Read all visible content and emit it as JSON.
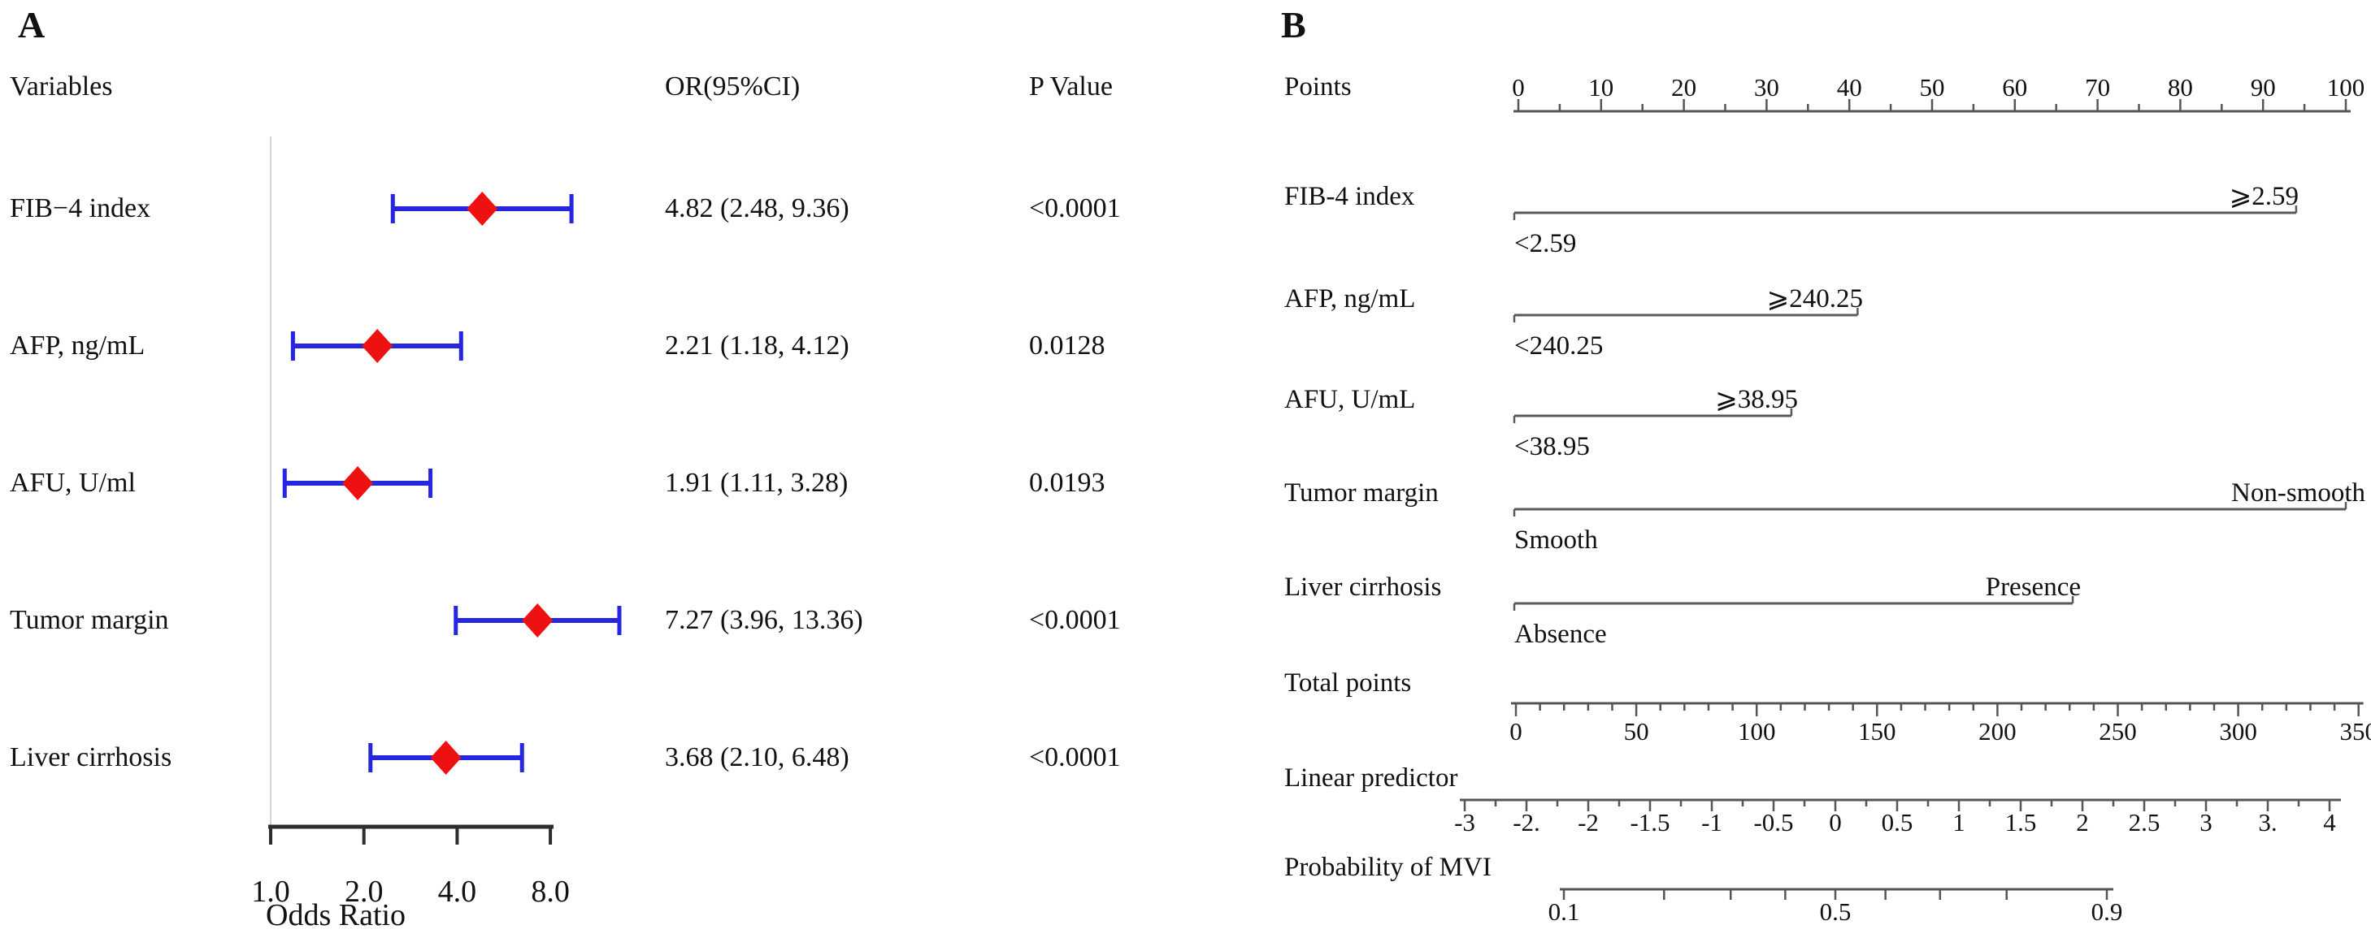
{
  "chart_data": [
    {
      "type": "scatter",
      "subtype": "forest-plot",
      "title": "A",
      "columns": [
        "Variables",
        "OR(95%CI)",
        "P Value"
      ],
      "xlabel": "Odds Ratio",
      "x_scale": "log2",
      "x_ticks": [
        1.0,
        2.0,
        4.0,
        8.0
      ],
      "x_tick_labels": [
        "1.0",
        "2.0",
        "4.0",
        "8.0"
      ],
      "ref_line_x": 1.0,
      "marker": "diamond",
      "colors": {
        "diamond": "#ee1111",
        "ci_bar": "#2626e0",
        "axis": "#2d2d2d",
        "ref_line": "#d4d4d4"
      },
      "rows": [
        {
          "label": "FIB−4 index",
          "or": 4.82,
          "ci_low": 2.48,
          "ci_high": 9.36,
          "or_text": "4.82 (2.48, 9.36)",
          "p_text": "<0.0001"
        },
        {
          "label": "AFP, ng/mL",
          "or": 2.21,
          "ci_low": 1.18,
          "ci_high": 4.12,
          "or_text": "2.21 (1.18, 4.12)",
          "p_text": "0.0128"
        },
        {
          "label": "AFU, U/ml",
          "or": 1.91,
          "ci_low": 1.11,
          "ci_high": 3.28,
          "or_text": "1.91 (1.11, 3.28)",
          "p_text": "0.0193"
        },
        {
          "label": "Tumor margin",
          "or": 7.27,
          "ci_low": 3.96,
          "ci_high": 13.36,
          "or_text": "7.27 (3.96, 13.36)",
          "p_text": "<0.0001"
        },
        {
          "label": "Liver cirrhosis",
          "or": 3.68,
          "ci_low": 2.1,
          "ci_high": 6.48,
          "or_text": "3.68 (2.10, 6.48)",
          "p_text": "<0.0001"
        }
      ]
    },
    {
      "type": "table",
      "subtype": "nomogram",
      "title": "B",
      "points_axis": {
        "label": "Points",
        "min": 0,
        "max": 100,
        "major_step": 10,
        "minor_step": 5,
        "tick_labels": [
          "0",
          "10",
          "20",
          "30",
          "40",
          "50",
          "60",
          "70",
          "80",
          "90",
          "100"
        ]
      },
      "variables": [
        {
          "label": "FIB-4 index",
          "high_label": "⩾2.59",
          "low_label": "<2.59",
          "points_end": 94
        },
        {
          "label": "AFP, ng/mL",
          "high_label": "⩾240.25",
          "low_label": "<240.25",
          "points_end": 41
        },
        {
          "label": "AFU, U/mL",
          "high_label": "⩾38.95",
          "low_label": "<38.95",
          "points_end": 33
        },
        {
          "label": "Tumor margin",
          "high_label": "Non-smooth",
          "low_label": "Smooth",
          "points_end": 100
        },
        {
          "label": "Liver cirrhosis",
          "high_label": "Presence",
          "low_label": "Absence",
          "points_end": 67
        }
      ],
      "total_points_axis": {
        "label": "Total points",
        "min": 0,
        "max": 350,
        "major_step": 50,
        "minor_step": 10,
        "tick_labels": [
          "0",
          "50",
          "100",
          "150",
          "200",
          "250",
          "300",
          "350"
        ]
      },
      "linear_predictor_axis": {
        "label": "Linear predictor",
        "min": -3,
        "max": 4,
        "major_step": 0.5,
        "minor_step": 0.25,
        "tick_labels": [
          "-3",
          "-2.",
          "-2",
          "-1.5",
          "-1",
          "-0.5",
          "0",
          "0.5",
          "1",
          "1.5",
          "2",
          "2.5",
          "3",
          "3.",
          "4"
        ]
      },
      "probability_axis": {
        "label": "Probability of MVI",
        "scale": "logit",
        "ticks": [
          {
            "value": 0.1,
            "label": "0.1"
          },
          {
            "value": 0.2
          },
          {
            "value": 0.3
          },
          {
            "value": 0.4
          },
          {
            "value": 0.5,
            "label": "0.5"
          },
          {
            "value": 0.6
          },
          {
            "value": 0.7
          },
          {
            "value": 0.8
          },
          {
            "value": 0.9,
            "label": "0.9"
          }
        ]
      }
    }
  ]
}
